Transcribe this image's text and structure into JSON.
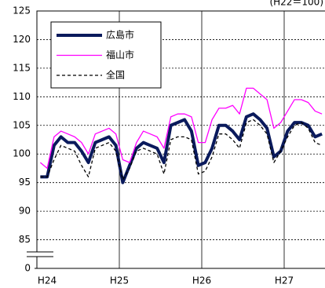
{
  "chart_data": {
    "type": "line",
    "annotation": "(H22＝100)",
    "categories": [
      "H24",
      null,
      null,
      null,
      null,
      null,
      null,
      null,
      null,
      null,
      null,
      null,
      "H25",
      null,
      null,
      null,
      null,
      null,
      null,
      null,
      null,
      null,
      null,
      null,
      "H26",
      null,
      null,
      null,
      null,
      null,
      null,
      null,
      null,
      null,
      null,
      null,
      "H27",
      null,
      null,
      null,
      null,
      null
    ],
    "series": [
      {
        "name": "広島市",
        "color": "#0a1a5c",
        "width": 4,
        "dash": false,
        "values": [
          96,
          96,
          101.5,
          103,
          102,
          102,
          100.5,
          98.5,
          102,
          102.5,
          103,
          101.5,
          95,
          98,
          101,
          102,
          101.5,
          101,
          98.5,
          105,
          105.5,
          106,
          104,
          98,
          98.5,
          101,
          105,
          105,
          104,
          102.5,
          106.5,
          107,
          106,
          104.5,
          99.5,
          100.5,
          104,
          105.5,
          105.5,
          105,
          103,
          103.5
        ]
      },
      {
        "name": "福山市",
        "color": "#ff00ff",
        "width": 1.3,
        "dash": false,
        "values": [
          98.5,
          97.5,
          103,
          104,
          103.5,
          103,
          102,
          100,
          103.5,
          104,
          104.5,
          103.5,
          99,
          98.5,
          102,
          104,
          103.5,
          103,
          101,
          106.5,
          107,
          107,
          106.5,
          102,
          102,
          106,
          108,
          108,
          108.5,
          107,
          111.5,
          111.5,
          110.5,
          109.5,
          104.5,
          105.5,
          107.5,
          109.5,
          109.5,
          109,
          107.5,
          107
        ]
      },
      {
        "name": "全国",
        "color": "#000000",
        "width": 1.3,
        "dash": true,
        "values": [
          96,
          96,
          99,
          101.5,
          101,
          100.5,
          98,
          96,
          101,
          101.5,
          102,
          100.5,
          95.5,
          97.5,
          100.5,
          101,
          100.5,
          100,
          96.5,
          102.5,
          103,
          103,
          102.5,
          96.5,
          97,
          99.5,
          103.5,
          103.5,
          102.5,
          101,
          105.5,
          106,
          105,
          103.5,
          98.5,
          100.5,
          103,
          105,
          105.5,
          104.5,
          102,
          101.5
        ]
      }
    ],
    "ylim": [
      0,
      125
    ],
    "y_break": [
      0,
      80
    ],
    "yticks": [
      0,
      85,
      90,
      95,
      100,
      105,
      110,
      115,
      120,
      125
    ],
    "grid": true
  }
}
